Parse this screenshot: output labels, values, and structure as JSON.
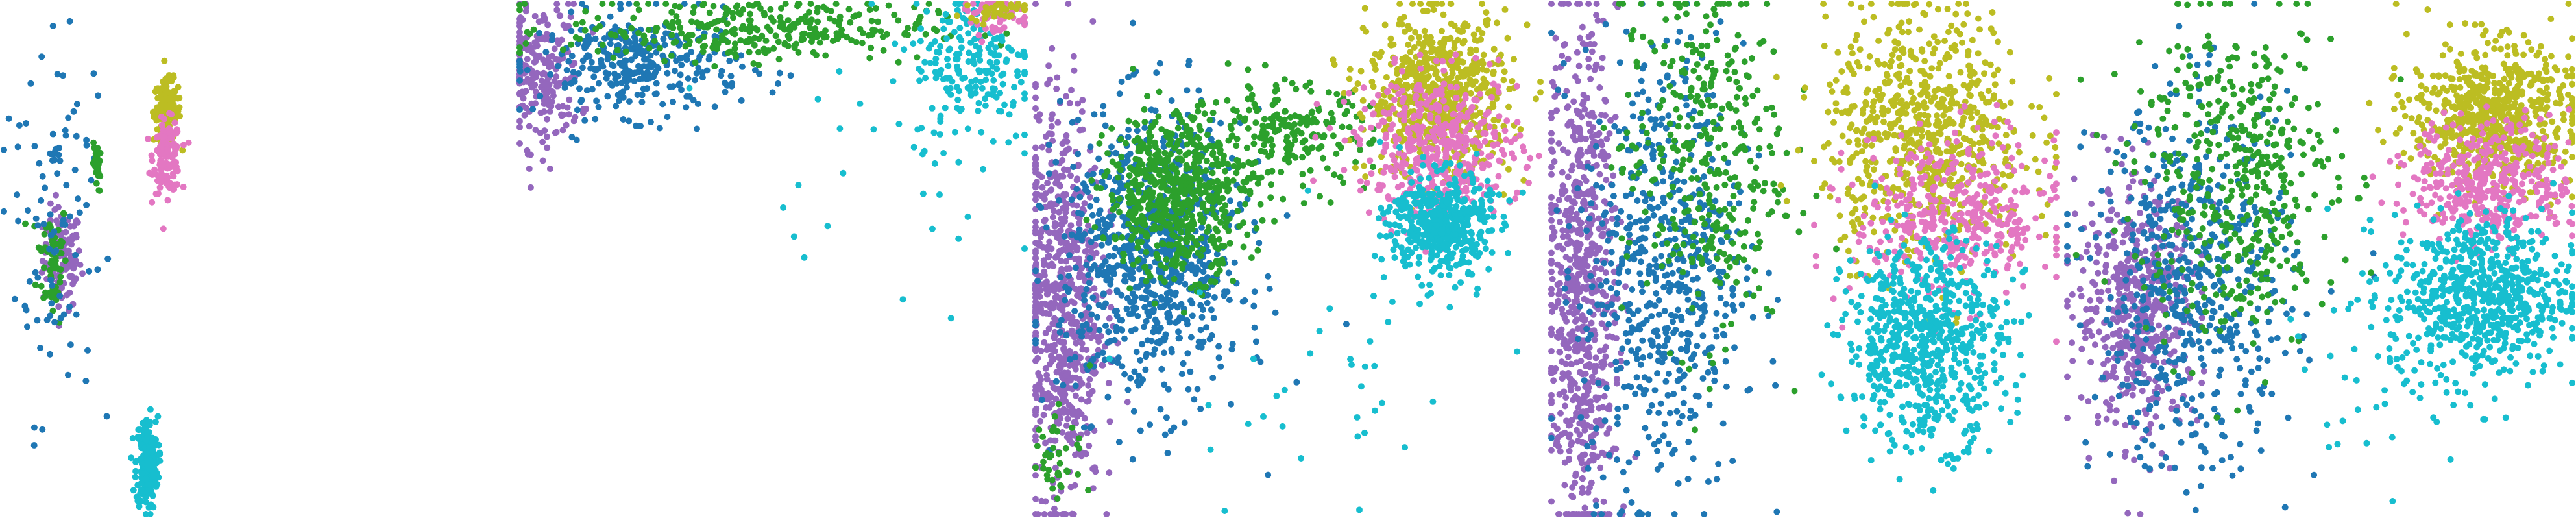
{
  "figure": {
    "title": ""
  },
  "colors": {
    "c_blue": "#1f77b4",
    "c_green": "#2ca02c",
    "c_purple": "#9467bd",
    "c_olive": "#bcbd22",
    "c_pink": "#e377c2",
    "c_cyan": "#17becf"
  },
  "chart_data": [
    {
      "type": "scatter",
      "title": "",
      "xlabel": "",
      "ylabel": "",
      "xlim": [
        0,
        1
      ],
      "ylim": [
        0,
        1
      ],
      "grid": false,
      "legend": "none",
      "clusters": [
        {
          "color": "c_purple",
          "cx": 0.3,
          "cy": 0.5,
          "sx": 0.05,
          "sy": 0.05,
          "n": 120
        },
        {
          "color": "c_green",
          "cx": 0.25,
          "cy": 0.5,
          "sx": 0.04,
          "sy": 0.06,
          "n": 60
        },
        {
          "color": "c_blue",
          "cx": 0.26,
          "cy": 0.55,
          "sx": 0.1,
          "sy": 0.18,
          "n": 70
        },
        {
          "color": "c_olive",
          "cx": 0.845,
          "cy": 0.79,
          "sx": 0.035,
          "sy": 0.03,
          "n": 160
        },
        {
          "color": "c_pink",
          "cx": 0.845,
          "cy": 0.7,
          "sx": 0.035,
          "sy": 0.035,
          "n": 140
        },
        {
          "color": "c_cyan",
          "cx": 0.74,
          "cy": 0.1,
          "sx": 0.028,
          "sy": 0.045,
          "n": 220
        },
        {
          "color": "c_green",
          "cx": 0.48,
          "cy": 0.68,
          "sx": 0.01,
          "sy": 0.025,
          "n": 25
        },
        {
          "color": "c_blue",
          "cx": 0.22,
          "cy": 0.72,
          "sx": 0.12,
          "sy": 0.1,
          "n": 25
        }
      ]
    },
    {
      "type": "scatter",
      "title": "",
      "xlabel": "",
      "ylabel": "",
      "xlim": [
        0,
        1
      ],
      "ylim": [
        0,
        1
      ],
      "grid": false,
      "legend": "none",
      "clusters": [
        {
          "color": "c_purple",
          "cx": 0.04,
          "cy": 0.86,
          "sx": 0.04,
          "sy": 0.07,
          "n": 220
        },
        {
          "color": "c_blue",
          "cx": 0.24,
          "cy": 0.88,
          "sx": 0.1,
          "sy": 0.05,
          "n": 320
        },
        {
          "color": "c_green",
          "cx": 0.45,
          "cy": 0.95,
          "sx": 0.18,
          "sy": 0.03,
          "n": 320
        },
        {
          "color": "c_cyan",
          "cx": 0.9,
          "cy": 0.88,
          "sx": 0.06,
          "sy": 0.08,
          "n": 200
        },
        {
          "color": "c_pink",
          "cx": 0.94,
          "cy": 0.98,
          "sx": 0.04,
          "sy": 0.02,
          "n": 60
        },
        {
          "color": "c_olive",
          "cx": 0.95,
          "cy": 0.99,
          "sx": 0.03,
          "sy": 0.01,
          "n": 40
        },
        {
          "color": "c_cyan",
          "cx": 0.7,
          "cy": 0.65,
          "sx": 0.15,
          "sy": 0.12,
          "n": 25
        }
      ]
    },
    {
      "type": "scatter",
      "title": "",
      "xlabel": "",
      "ylabel": "",
      "xlim": [
        0,
        1
      ],
      "ylim": [
        0,
        1
      ],
      "grid": false,
      "legend": "none",
      "clusters": [
        {
          "color": "c_purple",
          "cx": 0.05,
          "cy": 0.42,
          "sx": 0.04,
          "sy": 0.2,
          "n": 700
        },
        {
          "color": "c_blue",
          "cx": 0.23,
          "cy": 0.5,
          "sx": 0.09,
          "sy": 0.14,
          "n": 800
        },
        {
          "color": "c_green",
          "cx": 0.28,
          "cy": 0.63,
          "sx": 0.07,
          "sy": 0.08,
          "n": 600
        },
        {
          "color": "c_green",
          "cx": 0.5,
          "cy": 0.74,
          "sx": 0.08,
          "sy": 0.05,
          "n": 200
        },
        {
          "color": "c_olive",
          "cx": 0.8,
          "cy": 0.82,
          "sx": 0.07,
          "sy": 0.08,
          "n": 650
        },
        {
          "color": "c_pink",
          "cx": 0.8,
          "cy": 0.72,
          "sx": 0.08,
          "sy": 0.07,
          "n": 450
        },
        {
          "color": "c_cyan",
          "cx": 0.8,
          "cy": 0.57,
          "sx": 0.05,
          "sy": 0.05,
          "n": 450
        },
        {
          "color": "c_cyan",
          "cx": 0.6,
          "cy": 0.25,
          "sx": 0.15,
          "sy": 0.15,
          "n": 40
        },
        {
          "color": "c_green",
          "cx": 0.05,
          "cy": 0.12,
          "sx": 0.03,
          "sy": 0.04,
          "n": 40
        }
      ]
    },
    {
      "type": "scatter",
      "title": "",
      "xlabel": "",
      "ylabel": "",
      "xlim": [
        0,
        1
      ],
      "ylim": [
        0,
        1
      ],
      "grid": false,
      "legend": "none",
      "clusters": [
        {
          "color": "c_purple",
          "cx": 0.06,
          "cy": 0.45,
          "sx": 0.035,
          "sy": 0.25,
          "n": 700
        },
        {
          "color": "c_blue",
          "cx": 0.22,
          "cy": 0.48,
          "sx": 0.08,
          "sy": 0.22,
          "n": 600
        },
        {
          "color": "c_green",
          "cx": 0.3,
          "cy": 0.7,
          "sx": 0.08,
          "sy": 0.18,
          "n": 350
        },
        {
          "color": "c_olive",
          "cx": 0.74,
          "cy": 0.75,
          "sx": 0.1,
          "sy": 0.12,
          "n": 700
        },
        {
          "color": "c_pink",
          "cx": 0.8,
          "cy": 0.58,
          "sx": 0.1,
          "sy": 0.08,
          "n": 400
        },
        {
          "color": "c_cyan",
          "cx": 0.74,
          "cy": 0.34,
          "sx": 0.08,
          "sy": 0.1,
          "n": 650
        }
      ]
    },
    {
      "type": "scatter",
      "title": "",
      "xlabel": "",
      "ylabel": "",
      "xlim": [
        0,
        1
      ],
      "ylim": [
        0,
        1
      ],
      "grid": false,
      "legend": "none",
      "clusters": [
        {
          "color": "c_purple",
          "cx": 0.14,
          "cy": 0.4,
          "sx": 0.06,
          "sy": 0.12,
          "n": 500
        },
        {
          "color": "c_blue",
          "cx": 0.25,
          "cy": 0.45,
          "sx": 0.1,
          "sy": 0.18,
          "n": 550
        },
        {
          "color": "c_green",
          "cx": 0.33,
          "cy": 0.66,
          "sx": 0.1,
          "sy": 0.16,
          "n": 450
        },
        {
          "color": "c_olive",
          "cx": 0.84,
          "cy": 0.78,
          "sx": 0.08,
          "sy": 0.07,
          "n": 650
        },
        {
          "color": "c_pink",
          "cx": 0.84,
          "cy": 0.65,
          "sx": 0.08,
          "sy": 0.06,
          "n": 400
        },
        {
          "color": "c_cyan",
          "cx": 0.82,
          "cy": 0.43,
          "sx": 0.09,
          "sy": 0.08,
          "n": 650
        },
        {
          "color": "c_cyan",
          "cx": 0.62,
          "cy": 0.25,
          "sx": 0.1,
          "sy": 0.1,
          "n": 40
        }
      ]
    }
  ]
}
